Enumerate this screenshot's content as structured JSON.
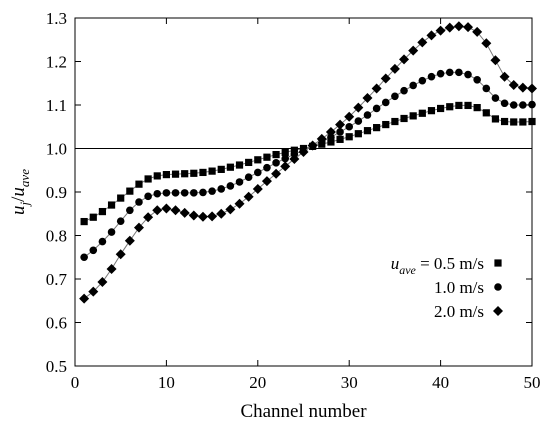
{
  "chart_data": {
    "type": "scatter",
    "xlabel": "Channel number",
    "ylabel_parts": [
      {
        "t": "u",
        "i": true
      },
      {
        "t": "j",
        "i": true,
        "sub": true
      },
      {
        "t": "/",
        "i": false
      },
      {
        "t": "u",
        "i": true
      },
      {
        "t": "ave",
        "i": true,
        "sub": true
      }
    ],
    "xlim": [
      0,
      50
    ],
    "ylim": [
      0.5,
      1.3
    ],
    "xticks": [
      0,
      10,
      20,
      30,
      40,
      50
    ],
    "yticks": [
      0.5,
      0.6,
      0.7,
      0.8,
      0.9,
      1.0,
      1.1,
      1.2,
      1.3
    ],
    "ytick_labels": [
      "0.5",
      "0.6",
      "0.7",
      "0.8",
      "0.9",
      "1.0",
      "1.1",
      "1.2",
      "1.3"
    ],
    "reference_line_y": 1.0,
    "legend_position": "lower-right",
    "legend": [
      {
        "label_math": "u",
        "label_sub": "ave",
        "label_rest": " = 0.5 m/s",
        "marker": "square"
      },
      {
        "label_math": "",
        "label_sub": "",
        "label_rest": "1.0 m/s",
        "marker": "circle"
      },
      {
        "label_math": "",
        "label_sub": "",
        "label_rest": "2.0 m/s",
        "marker": "diamond"
      }
    ],
    "x": [
      1,
      2,
      3,
      4,
      5,
      6,
      7,
      8,
      9,
      10,
      11,
      12,
      13,
      14,
      15,
      16,
      17,
      18,
      19,
      20,
      21,
      22,
      23,
      24,
      25,
      26,
      27,
      28,
      29,
      30,
      31,
      32,
      33,
      34,
      35,
      36,
      37,
      38,
      39,
      40,
      41,
      42,
      43,
      44,
      45,
      46,
      47,
      48,
      49,
      50
    ],
    "series": [
      {
        "marker": "square",
        "values": [
          0.832,
          0.842,
          0.855,
          0.87,
          0.886,
          0.902,
          0.918,
          0.93,
          0.937,
          0.94,
          0.941,
          0.942,
          0.943,
          0.945,
          0.948,
          0.952,
          0.957,
          0.962,
          0.968,
          0.974,
          0.98,
          0.986,
          0.991,
          0.996,
          1.0,
          1.005,
          1.01,
          1.015,
          1.021,
          1.027,
          1.034,
          1.041,
          1.048,
          1.055,
          1.062,
          1.069,
          1.075,
          1.081,
          1.087,
          1.092,
          1.096,
          1.099,
          1.099,
          1.094,
          1.082,
          1.068,
          1.062,
          1.061,
          1.061,
          1.062
        ]
      },
      {
        "marker": "circle",
        "values": [
          0.75,
          0.766,
          0.786,
          0.808,
          0.833,
          0.858,
          0.877,
          0.89,
          0.896,
          0.898,
          0.898,
          0.898,
          0.898,
          0.899,
          0.902,
          0.907,
          0.914,
          0.923,
          0.934,
          0.945,
          0.956,
          0.967,
          0.977,
          0.987,
          0.996,
          1.005,
          1.015,
          1.026,
          1.038,
          1.05,
          1.063,
          1.077,
          1.092,
          1.106,
          1.12,
          1.133,
          1.145,
          1.156,
          1.165,
          1.172,
          1.175,
          1.175,
          1.17,
          1.158,
          1.138,
          1.116,
          1.104,
          1.1,
          1.1,
          1.101
        ]
      },
      {
        "marker": "diamond",
        "values": [
          0.655,
          0.671,
          0.693,
          0.723,
          0.757,
          0.788,
          0.818,
          0.842,
          0.858,
          0.862,
          0.858,
          0.852,
          0.846,
          0.843,
          0.844,
          0.85,
          0.86,
          0.873,
          0.889,
          0.907,
          0.925,
          0.942,
          0.959,
          0.976,
          0.992,
          1.007,
          1.022,
          1.038,
          1.055,
          1.073,
          1.094,
          1.116,
          1.138,
          1.161,
          1.183,
          1.205,
          1.225,
          1.244,
          1.26,
          1.271,
          1.278,
          1.281,
          1.279,
          1.268,
          1.242,
          1.203,
          1.165,
          1.146,
          1.14,
          1.138
        ]
      }
    ]
  }
}
